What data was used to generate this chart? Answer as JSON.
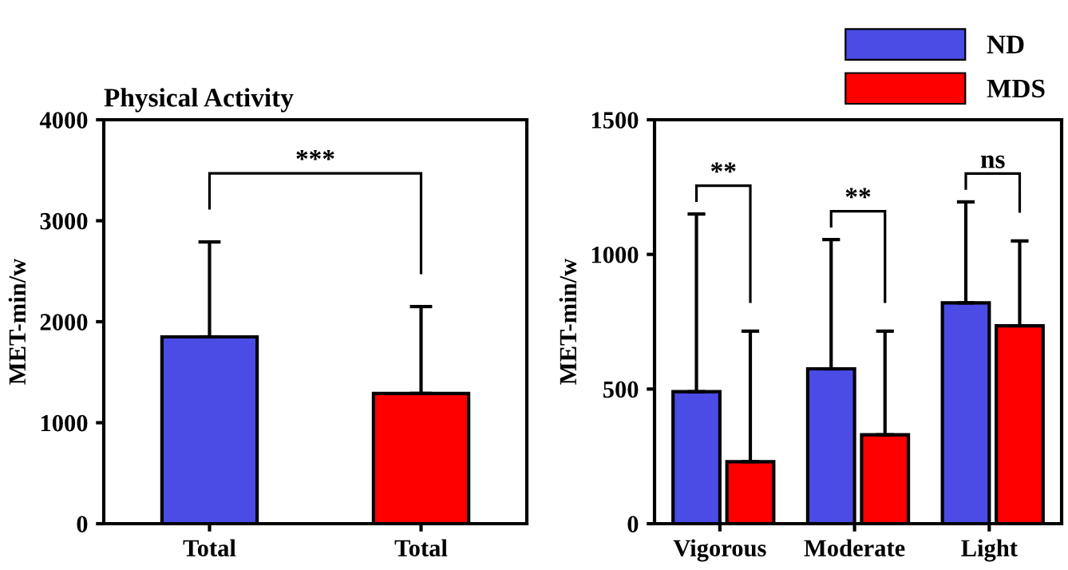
{
  "chart_data": [
    {
      "type": "bar",
      "title": "Physical Activity",
      "ylabel": "MET-min/w",
      "categories": [
        "Total",
        "Total"
      ],
      "values": [
        1850,
        1290
      ],
      "colors": [
        "#4b4be6",
        "#ff0000"
      ],
      "errors": [
        [
          1850,
          2790
        ],
        [
          1290,
          2150
        ]
      ],
      "ylim": [
        0,
        4000
      ],
      "yticks": [
        0,
        1000,
        2000,
        3000,
        4000
      ],
      "grid": false,
      "annotations": [
        "***"
      ]
    },
    {
      "type": "bar",
      "ylabel": "MET-min/w",
      "categories": [
        "Vigorous",
        "Moderate",
        "Light"
      ],
      "legend": "top right",
      "ylim": [
        0,
        1500
      ],
      "yticks": [
        0,
        500,
        1000,
        1500
      ],
      "grid": false,
      "series": [
        {
          "name": "ND",
          "color": "#4b4be6",
          "values": [
            490,
            575,
            820
          ],
          "errors": [
            [
              490,
              1150
            ],
            [
              575,
              1055
            ],
            [
              820,
              1195
            ]
          ]
        },
        {
          "name": "MDS",
          "color": "#ff0000",
          "values": [
            230,
            330,
            735
          ],
          "errors": [
            [
              230,
              715
            ],
            [
              330,
              715
            ],
            [
              735,
              1050
            ]
          ]
        }
      ],
      "annotations": [
        "**",
        "**",
        "ns"
      ]
    }
  ]
}
